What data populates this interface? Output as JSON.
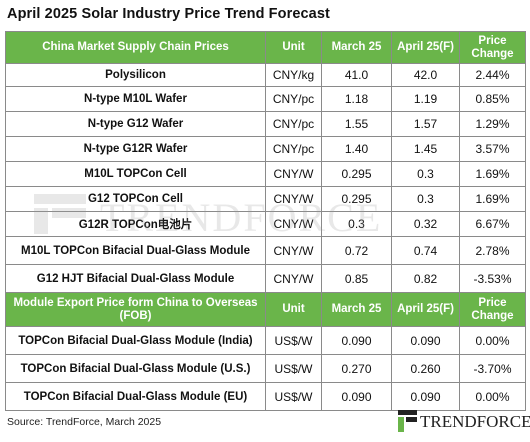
{
  "title": "April 2025 Solar Industry Price Trend Forecast",
  "table1": {
    "headers": [
      "China Market Supply Chain Prices",
      "Unit",
      "March 25",
      "April 25(F)",
      "Price Change"
    ],
    "rows": [
      [
        "Polysilicon",
        "CNY/kg",
        "41.0",
        "42.0",
        "2.44%"
      ],
      [
        "N-type M10L Wafer",
        "CNY/pc",
        "1.18",
        "1.19",
        "0.85%"
      ],
      [
        "N-type G12 Wafer",
        "CNY/pc",
        "1.55",
        "1.57",
        "1.29%"
      ],
      [
        "N-type G12R Wafer",
        "CNY/pc",
        "1.40",
        "1.45",
        "3.57%"
      ],
      [
        "M10L TOPCon Cell",
        "CNY/W",
        "0.295",
        "0.3",
        "1.69%"
      ],
      [
        "G12 TOPCon Cell",
        "CNY/W",
        "0.295",
        "0.3",
        "1.69%"
      ],
      [
        "G12R TOPCon电池片",
        "CNY/W",
        "0.3",
        "0.32",
        "6.67%"
      ],
      [
        "M10L TOPCon Bifacial Dual-Glass Module",
        "CNY/W",
        "0.72",
        "0.74",
        "2.78%"
      ],
      [
        "G12 HJT Bifacial Dual-Glass Module",
        "CNY/W",
        "0.85",
        "0.82",
        "-3.53%"
      ]
    ]
  },
  "table2": {
    "headers": [
      "Module Export Price form China to Overseas (FOB)",
      "Unit",
      "March 25",
      "April 25(F)",
      "Price Change"
    ],
    "rows": [
      [
        "TOPCon Bifacial Dual-Glass Module (India)",
        "US$/W",
        "0.090",
        "0.090",
        "0.00%"
      ],
      [
        "TOPCon Bifacial Dual-Glass Module (U.S.)",
        "US$/W",
        "0.270",
        "0.260",
        "-3.70%"
      ],
      [
        "TOPCon Bifacial Dual-Glass Module (EU)",
        "US$/W",
        "0.090",
        "0.090",
        "0.00%"
      ]
    ]
  },
  "source": "Source: TrendForce, March 2025",
  "watermark_text": "TRENDFORCE",
  "logo_text": "TRENDFORCE",
  "colors": {
    "header_bg": "#6ab54a",
    "header_text": "#ffffff",
    "border": "#8a8a8a"
  }
}
